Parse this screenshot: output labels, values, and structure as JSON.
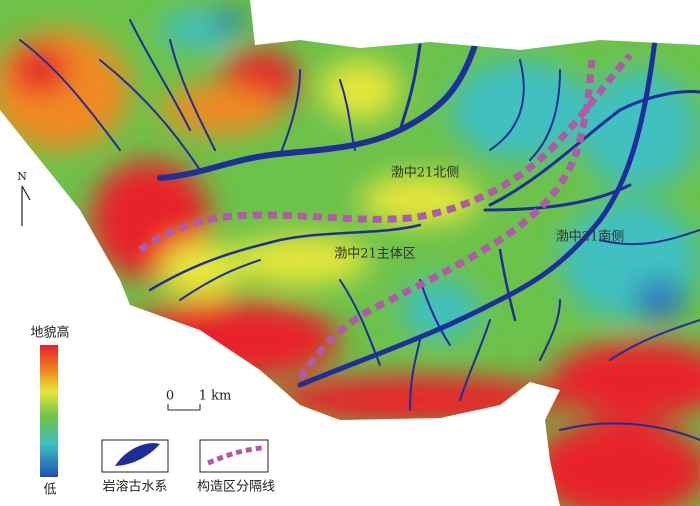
{
  "compass": {
    "label": "N"
  },
  "legend": {
    "colorbar": {
      "high": "地貌高",
      "low": "低"
    },
    "items": [
      {
        "label": "岩溶古水系"
      },
      {
        "label": "构造区分隔线"
      }
    ]
  },
  "scale": {
    "start": "0",
    "end": "1 km"
  },
  "regions": [
    {
      "label": "渤中21北侧"
    },
    {
      "label": "渤中21主体区"
    },
    {
      "label": "渤中21南侧"
    }
  ]
}
